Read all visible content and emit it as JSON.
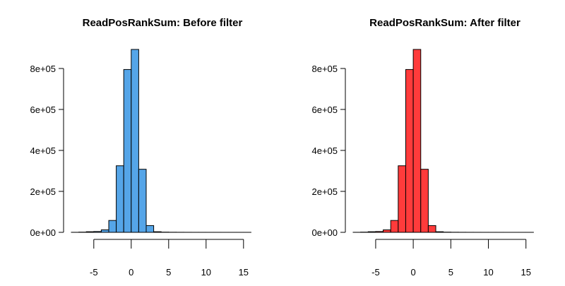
{
  "chart_data": [
    {
      "type": "bar",
      "subtype": "histogram",
      "title": "ReadPosRankSum: Before filter",
      "xlabel": "",
      "ylabel": "",
      "bar_color": "#55A5E8",
      "bin_width": 1,
      "bin_starts": [
        -8,
        -7,
        -6,
        -5,
        -4,
        -3,
        -2,
        -1,
        0,
        1,
        2,
        3,
        4,
        5,
        6,
        7,
        8,
        9,
        10,
        11,
        12,
        13,
        14,
        15,
        16
      ],
      "values": [
        200,
        1000,
        3000,
        4000,
        12000,
        58000,
        325000,
        795000,
        893000,
        308000,
        33000,
        3000,
        1000,
        500,
        300,
        200,
        150,
        100,
        80,
        60,
        50,
        40,
        30,
        20,
        10
      ],
      "x_ticks": [
        -5,
        0,
        5,
        10,
        15
      ],
      "x_tick_labels": [
        "-5",
        "0",
        "5",
        "10",
        "15"
      ],
      "y_ticks": [
        0,
        200000,
        400000,
        600000,
        800000
      ],
      "y_tick_labels": [
        "0e+00",
        "2e+05",
        "4e+05",
        "6e+05",
        "8e+05"
      ],
      "xlim": [
        -8,
        17
      ],
      "ylim": [
        0,
        893000
      ],
      "grid": false
    },
    {
      "type": "bar",
      "subtype": "histogram",
      "title": "ReadPosRankSum: After filter",
      "xlabel": "",
      "ylabel": "",
      "bar_color": "#FF3B3B",
      "bin_width": 1,
      "bin_starts": [
        -8,
        -7,
        -6,
        -5,
        -4,
        -3,
        -2,
        -1,
        0,
        1,
        2,
        3,
        4,
        5,
        6,
        7,
        8,
        9,
        10,
        11,
        12,
        13,
        14,
        15,
        16
      ],
      "values": [
        200,
        1000,
        3000,
        4000,
        12000,
        58000,
        325000,
        795000,
        893000,
        308000,
        33000,
        3000,
        1000,
        500,
        300,
        200,
        150,
        100,
        80,
        60,
        50,
        40,
        30,
        20,
        10
      ],
      "x_ticks": [
        -5,
        0,
        5,
        10,
        15
      ],
      "x_tick_labels": [
        "-5",
        "0",
        "5",
        "10",
        "15"
      ],
      "y_ticks": [
        0,
        200000,
        400000,
        600000,
        800000
      ],
      "y_tick_labels": [
        "0e+00",
        "2e+05",
        "4e+05",
        "6e+05",
        "8e+05"
      ],
      "xlim": [
        -8,
        17
      ],
      "ylim": [
        0,
        893000
      ],
      "grid": false
    }
  ]
}
